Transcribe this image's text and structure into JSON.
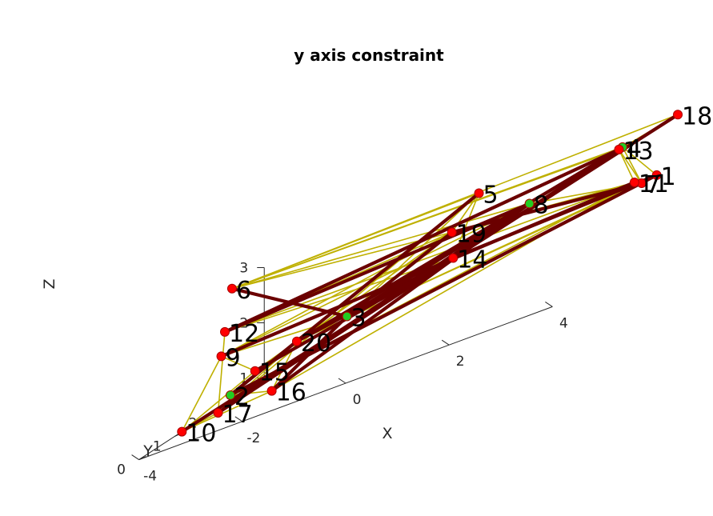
{
  "chart_data": {
    "type": "network-3d",
    "title": "y axis constraint",
    "xlabel": "X",
    "ylabel": "Y",
    "zlabel": "Z",
    "x_ticks": [
      "-4",
      "-2",
      "0",
      "2",
      "4"
    ],
    "y_ticks": [
      "0",
      "1",
      "2",
      "3"
    ],
    "z_ticks": [
      "1",
      "2",
      "3"
    ],
    "xlim": [
      -4,
      4
    ],
    "ylim": [
      0,
      3.5
    ],
    "zlim": [
      1,
      3
    ],
    "colors": {
      "node": "#ff0000",
      "node_highlight": "#22cc22",
      "thin_edge": "#bfb000",
      "thick_edge": "#6b0000"
    },
    "nodes": [
      {
        "id": 1,
        "label": "1",
        "x": 3.8,
        "y": 3.2,
        "z": 2.1
      },
      {
        "id": 2,
        "label": "2",
        "x": -3.2,
        "y": 1.4,
        "z": 1.3
      },
      {
        "id": 3,
        "label": "3",
        "x": -1.5,
        "y": 2.2,
        "z": 1.8
      },
      {
        "id": 4,
        "label": "4",
        "x": 3.0,
        "y": 3.4,
        "z": 2.8
      },
      {
        "id": 5,
        "label": "5",
        "x": 0.5,
        "y": 3.0,
        "z": 3.0
      },
      {
        "id": 6,
        "label": "6",
        "x": -4.0,
        "y": 2.6,
        "z": 3.0
      },
      {
        "id": 7,
        "label": "7",
        "x": 3.3,
        "y": 3.5,
        "z": 2.0
      },
      {
        "id": 8,
        "label": "8",
        "x": 1.2,
        "y": 3.4,
        "z": 2.4
      },
      {
        "id": 9,
        "label": "9",
        "x": -4.0,
        "y": 2.3,
        "z": 1.9
      },
      {
        "id": 10,
        "label": "10",
        "x": -4.0,
        "y": 1.2,
        "z": 1.0
      },
      {
        "id": 11,
        "label": "11",
        "x": 3.3,
        "y": 3.3,
        "z": 2.1
      },
      {
        "id": 12,
        "label": "12",
        "x": -4.0,
        "y": 2.4,
        "z": 2.3
      },
      {
        "id": 13,
        "label": "13",
        "x": 3.0,
        "y": 3.3,
        "z": 2.8
      },
      {
        "id": 14,
        "label": "14",
        "x": 0.0,
        "y": 3.0,
        "z": 2.0
      },
      {
        "id": 15,
        "label": "15",
        "x": -3.0,
        "y": 1.8,
        "z": 1.5
      },
      {
        "id": 16,
        "label": "16",
        "x": -2.4,
        "y": 1.4,
        "z": 1.1
      },
      {
        "id": 17,
        "label": "17",
        "x": -3.3,
        "y": 1.2,
        "z": 1.1
      },
      {
        "id": 18,
        "label": "18",
        "x": 4.0,
        "y": 3.5,
        "z": 3.0
      },
      {
        "id": 19,
        "label": "19",
        "x": -0.3,
        "y": 3.4,
        "z": 2.4
      },
      {
        "id": 20,
        "label": "20",
        "x": -2.4,
        "y": 2.1,
        "z": 1.7
      }
    ],
    "highlight_nodes": [
      2,
      3,
      8,
      4
    ],
    "thin_edges": [
      [
        6,
        13
      ],
      [
        6,
        4
      ],
      [
        6,
        5
      ],
      [
        6,
        8
      ],
      [
        6,
        19
      ],
      [
        6,
        18
      ],
      [
        12,
        8
      ],
      [
        12,
        19
      ],
      [
        12,
        11
      ],
      [
        12,
        14
      ],
      [
        9,
        10
      ],
      [
        9,
        3
      ],
      [
        9,
        19
      ],
      [
        9,
        15
      ],
      [
        9,
        8
      ],
      [
        10,
        15
      ],
      [
        10,
        16
      ],
      [
        10,
        17
      ],
      [
        12,
        17
      ],
      [
        15,
        20
      ],
      [
        15,
        19
      ],
      [
        15,
        14
      ],
      [
        2,
        16
      ],
      [
        2,
        5
      ],
      [
        2,
        11
      ],
      [
        17,
        5
      ],
      [
        17,
        20
      ],
      [
        16,
        11
      ],
      [
        16,
        3
      ],
      [
        16,
        20
      ],
      [
        16,
        14
      ],
      [
        20,
        18
      ],
      [
        20,
        1
      ],
      [
        20,
        7
      ],
      [
        5,
        19
      ],
      [
        5,
        3
      ],
      [
        5,
        14
      ],
      [
        13,
        11
      ],
      [
        4,
        1
      ],
      [
        4,
        7
      ],
      [
        13,
        7
      ],
      [
        8,
        7
      ],
      [
        8,
        18
      ],
      [
        14,
        13
      ],
      [
        19,
        11
      ],
      [
        3,
        4
      ]
    ],
    "thick_edges": [
      [
        6,
        3
      ],
      [
        12,
        13
      ],
      [
        9,
        11
      ],
      [
        10,
        18
      ],
      [
        2,
        5
      ],
      [
        2,
        1
      ],
      [
        17,
        4
      ],
      [
        17,
        8
      ],
      [
        20,
        13
      ],
      [
        20,
        8
      ],
      [
        20,
        14
      ],
      [
        3,
        19
      ],
      [
        3,
        8
      ],
      [
        19,
        7
      ],
      [
        14,
        1
      ],
      [
        15,
        14
      ],
      [
        16,
        3
      ],
      [
        16,
        8
      ],
      [
        12,
        8
      ]
    ]
  }
}
